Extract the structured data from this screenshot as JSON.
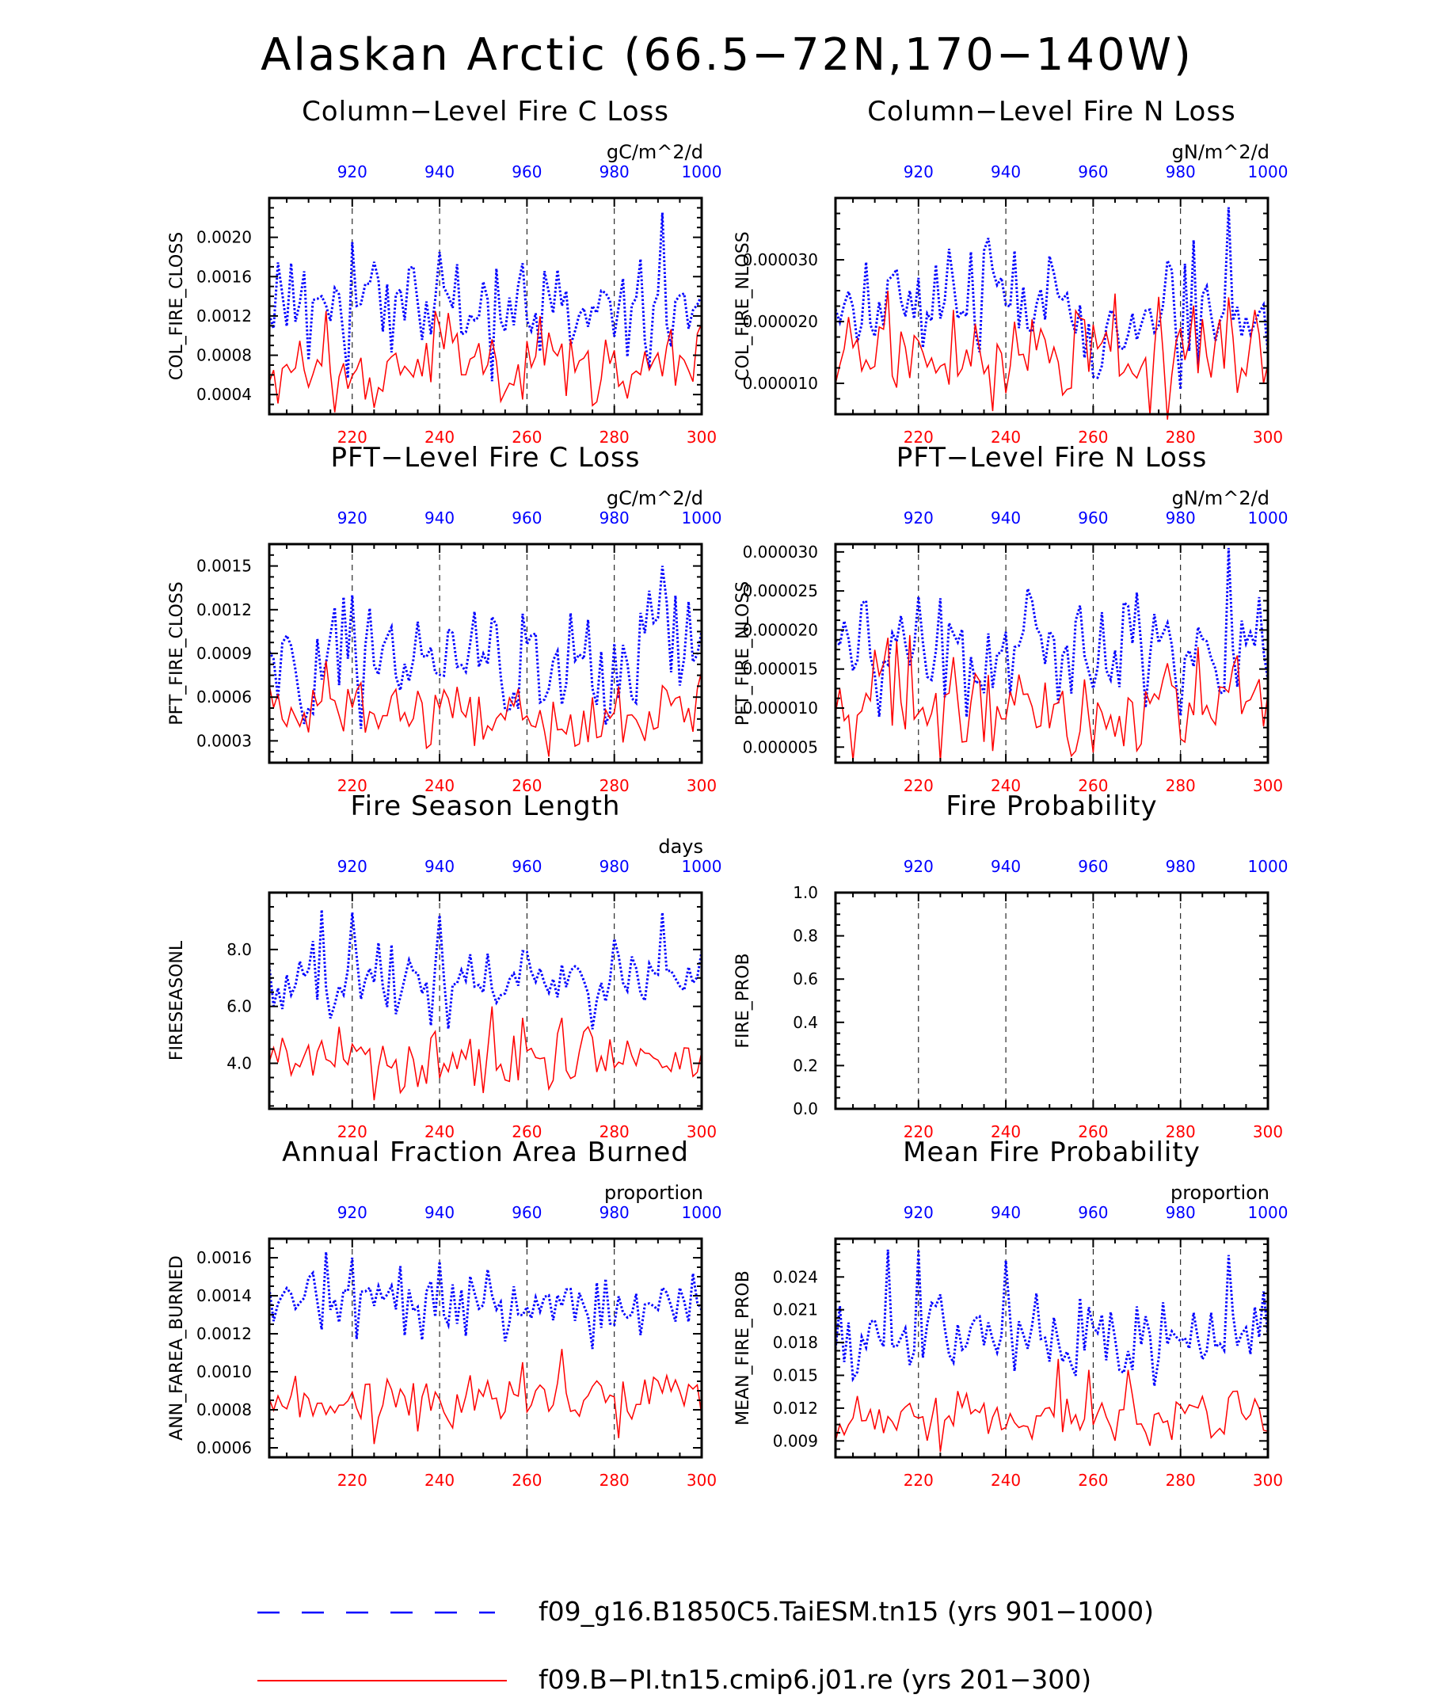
{
  "page_title": "Alaskan Arctic (66.5−72N,170−140W)",
  "colors": {
    "series_a": "#0000ff",
    "series_b": "#ff0000",
    "axis": "#000000"
  },
  "legend": [
    {
      "label": "f09_g16.B1850C5.TaiESM.tn15 (yrs 901−1000)",
      "style": "dashed",
      "color": "#0000ff"
    },
    {
      "label": "f09.B−PI.tn15.cmip6.j01.re (yrs 201−300)",
      "style": "solid",
      "color": "#ff0000"
    }
  ],
  "chart_data": [
    {
      "type": "line",
      "title": "Column−Level Fire C Loss",
      "units": "gC/m^2/d",
      "ylabel": "COL_FIRE_CLOSS",
      "ylim": [
        0.0002,
        0.0024
      ],
      "yticks": [
        0.0004,
        0.0008,
        0.0012,
        0.0016,
        0.002
      ],
      "ytick_labels": [
        "0.0004",
        "0.0008",
        "0.0012",
        "0.0016",
        "0.0020"
      ],
      "x_bottom": {
        "range": [
          201,
          300
        ],
        "ticks": [
          220,
          240,
          260,
          280,
          300
        ],
        "color": "red"
      },
      "x_top": {
        "range": [
          901,
          1000
        ],
        "ticks": [
          920,
          940,
          960,
          980,
          1000
        ],
        "color": "blue"
      },
      "series": [
        {
          "color": "blue",
          "style": "dotted",
          "base": 0.00125,
          "amp": 0.00028,
          "seed": 1,
          "peaks": [
            [
              19,
              0.00195
            ],
            [
              39,
              0.00185
            ],
            [
              90,
              0.00225
            ]
          ]
        },
        {
          "color": "red",
          "style": "solid",
          "base": 0.00075,
          "amp": 0.00022,
          "seed": 2,
          "peaks": [
            [
              13,
              0.00125
            ],
            [
              38,
              0.00125
            ],
            [
              22,
              0.00035
            ],
            [
              58,
              0.00035
            ]
          ]
        }
      ]
    },
    {
      "type": "line",
      "title": "Column−Level Fire N Loss",
      "units": "gN/m^2/d",
      "ylabel": "COL_FIRE_NLOSS",
      "ylim": [
        5e-06,
        4e-05
      ],
      "yticks": [
        1e-05,
        2e-05,
        3e-05
      ],
      "ytick_labels": [
        "0.000010",
        "0.000020",
        "0.000030"
      ],
      "x_bottom": {
        "range": [
          201,
          300
        ],
        "ticks": [
          220,
          240,
          260,
          280,
          300
        ],
        "color": "red"
      },
      "x_top": {
        "range": [
          901,
          1000
        ],
        "ticks": [
          920,
          940,
          960,
          980,
          1000
        ],
        "color": "blue"
      },
      "series": [
        {
          "color": "blue",
          "style": "dotted",
          "base": 2.15e-05,
          "amp": 5.5e-06,
          "seed": 3,
          "peaks": [
            [
              35,
              3.35e-05
            ],
            [
              90,
              3.85e-05
            ],
            [
              79,
              9e-06
            ]
          ]
        },
        {
          "color": "red",
          "style": "solid",
          "base": 1.35e-05,
          "amp": 4.5e-06,
          "seed": 4,
          "peaks": [
            [
              12,
              2.5e-05
            ],
            [
              36,
              5.5e-06
            ],
            [
              74,
              2.4e-05
            ]
          ]
        }
      ]
    },
    {
      "type": "line",
      "title": "PFT−Level Fire C Loss",
      "units": "gC/m^2/d",
      "ylabel": "PFT_FIRE_CLOSS",
      "ylim": [
        0.00015,
        0.00165
      ],
      "yticks": [
        0.0003,
        0.0006,
        0.0009,
        0.0012,
        0.0015
      ],
      "ytick_labels": [
        "0.0003",
        "0.0006",
        "0.0009",
        "0.0012",
        "0.0015"
      ],
      "x_bottom": {
        "range": [
          201,
          300
        ],
        "ticks": [
          220,
          240,
          260,
          280,
          300
        ],
        "color": "red"
      },
      "x_top": {
        "range": [
          901,
          1000
        ],
        "ticks": [
          920,
          940,
          960,
          980,
          1000
        ],
        "color": "blue"
      },
      "series": [
        {
          "color": "blue",
          "style": "dotted",
          "base": 0.00085,
          "amp": 0.0002,
          "seed": 5,
          "peaks": [
            [
              19,
              0.0013
            ],
            [
              90,
              0.0015
            ]
          ]
        },
        {
          "color": "red",
          "style": "solid",
          "base": 0.0005,
          "amp": 0.00013,
          "seed": 6,
          "peaks": [
            [
              13,
              0.00085
            ],
            [
              36,
              0.00025
            ]
          ]
        }
      ]
    },
    {
      "type": "line",
      "title": "PFT−Level Fire N Loss",
      "units": "gN/m^2/d",
      "ylabel": "PFT_FIRE_NLOSS",
      "ylim": [
        3e-06,
        3.1e-05
      ],
      "yticks": [
        5e-06,
        1e-05,
        1.5e-05,
        2e-05,
        2.5e-05,
        3e-05
      ],
      "ytick_labels": [
        "0.000005",
        "0.000010",
        "0.000015",
        "0.000020",
        "0.000025",
        "0.000030"
      ],
      "x_bottom": {
        "range": [
          201,
          300
        ],
        "ticks": [
          220,
          240,
          260,
          280,
          300
        ],
        "color": "red"
      },
      "x_top": {
        "range": [
          901,
          1000
        ],
        "ticks": [
          920,
          940,
          960,
          980,
          1000
        ],
        "color": "blue"
      },
      "series": [
        {
          "color": "blue",
          "style": "dotted",
          "base": 1.65e-05,
          "amp": 4e-06,
          "seed": 7,
          "peaks": [
            [
              90,
              3.05e-05
            ],
            [
              79,
              9e-06
            ]
          ]
        },
        {
          "color": "red",
          "style": "solid",
          "base": 1.05e-05,
          "amp": 3.5e-06,
          "seed": 8,
          "peaks": [
            [
              12,
              1.9e-05
            ],
            [
              36,
              4.5e-06
            ],
            [
              55,
              4.5e-06
            ]
          ]
        }
      ]
    },
    {
      "type": "line",
      "title": "Fire Season Length",
      "units": "days",
      "ylabel": "FIRESEASONL",
      "ylim": [
        2.4,
        10.0
      ],
      "yticks": [
        4.0,
        6.0,
        8.0
      ],
      "ytick_labels": [
        "4.0",
        "6.0",
        "8.0"
      ],
      "x_bottom": {
        "range": [
          201,
          300
        ],
        "ticks": [
          220,
          240,
          260,
          280,
          300
        ],
        "color": "red"
      },
      "x_top": {
        "range": [
          901,
          1000
        ],
        "ticks": [
          920,
          940,
          960,
          980,
          1000
        ],
        "color": "blue"
      },
      "series": [
        {
          "color": "blue",
          "style": "dotted",
          "base": 6.9,
          "amp": 0.7,
          "seed": 9,
          "peaks": [
            [
              12,
              9.4
            ],
            [
              19,
              9.3
            ],
            [
              39,
              9.2
            ],
            [
              90,
              9.3
            ],
            [
              74,
              5.2
            ]
          ]
        },
        {
          "color": "red",
          "style": "solid",
          "base": 4.1,
          "amp": 0.5,
          "seed": 10,
          "peaks": [
            [
              51,
              6.0
            ],
            [
              58,
              5.6
            ],
            [
              67,
              5.6
            ],
            [
              24,
              2.7
            ]
          ]
        }
      ]
    },
    {
      "type": "line",
      "title": "Fire Probability",
      "units": "",
      "ylabel": "FIRE_PROB",
      "ylim": [
        0.0,
        1.0
      ],
      "yticks": [
        0.0,
        0.2,
        0.4,
        0.6,
        0.8,
        1.0
      ],
      "ytick_labels": [
        "0.0",
        "0.2",
        "0.4",
        "0.6",
        "0.8",
        "1.0"
      ],
      "x_bottom": {
        "range": [
          201,
          300
        ],
        "ticks": [
          220,
          240,
          260,
          280,
          300
        ],
        "color": "red"
      },
      "x_top": {
        "range": [
          901,
          1000
        ],
        "ticks": [
          920,
          940,
          960,
          980,
          1000
        ],
        "color": "blue"
      },
      "series": []
    },
    {
      "type": "line",
      "title": "Annual Fraction Area Burned",
      "units": "proportion",
      "ylabel": "ANN_FAREA_BURNED",
      "ylim": [
        0.00055,
        0.0017
      ],
      "yticks": [
        0.0006,
        0.0008,
        0.001,
        0.0012,
        0.0014,
        0.0016
      ],
      "ytick_labels": [
        "0.0006",
        "0.0008",
        "0.0010",
        "0.0012",
        "0.0014",
        "0.0016"
      ],
      "x_bottom": {
        "range": [
          201,
          300
        ],
        "ticks": [
          220,
          240,
          260,
          280,
          300
        ],
        "color": "red"
      },
      "x_top": {
        "range": [
          901,
          1000
        ],
        "ticks": [
          920,
          940,
          960,
          980,
          1000
        ],
        "color": "blue"
      },
      "series": [
        {
          "color": "blue",
          "style": "dotted",
          "base": 0.00135,
          "amp": 9e-05,
          "seed": 11,
          "peaks": [
            [
              13,
              0.00163
            ],
            [
              19,
              0.0016
            ],
            [
              39,
              0.00158
            ],
            [
              74,
              0.00112
            ]
          ]
        },
        {
          "color": "red",
          "style": "solid",
          "base": 0.00085,
          "amp": 7e-05,
          "seed": 12,
          "peaks": [
            [
              67,
              0.00112
            ],
            [
              58,
              0.00105
            ],
            [
              24,
              0.00062
            ]
          ]
        }
      ]
    },
    {
      "type": "line",
      "title": "Mean Fire Probability",
      "units": "proportion",
      "ylabel": "MEAN_FIRE_PROB",
      "ylim": [
        0.0075,
        0.0275
      ],
      "yticks": [
        0.009,
        0.012,
        0.015,
        0.018,
        0.021,
        0.024
      ],
      "ytick_labels": [
        "0.009",
        "0.012",
        "0.015",
        "0.018",
        "0.021",
        "0.024"
      ],
      "x_bottom": {
        "range": [
          201,
          300
        ],
        "ticks": [
          220,
          240,
          260,
          280,
          300
        ],
        "color": "red"
      },
      "x_top": {
        "range": [
          901,
          1000
        ],
        "ticks": [
          920,
          940,
          960,
          980,
          1000
        ],
        "color": "blue"
      },
      "series": [
        {
          "color": "blue",
          "style": "dotted",
          "base": 0.0188,
          "amp": 0.0018,
          "seed": 13,
          "peaks": [
            [
              12,
              0.0265
            ],
            [
              19,
              0.0265
            ],
            [
              39,
              0.0255
            ],
            [
              90,
              0.026
            ]
          ]
        },
        {
          "color": "red",
          "style": "solid",
          "base": 0.011,
          "amp": 0.0012,
          "seed": 14,
          "peaks": [
            [
              51,
              0.0165
            ],
            [
              58,
              0.0155
            ],
            [
              67,
              0.0155
            ],
            [
              24,
              0.008
            ]
          ]
        }
      ]
    }
  ]
}
